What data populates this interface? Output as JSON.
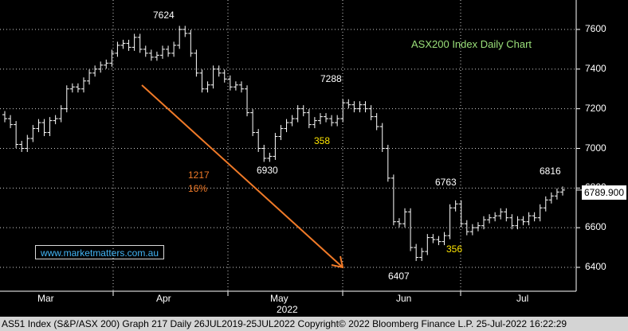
{
  "chart_data": {
    "type": "bar",
    "subtype": "ohlc",
    "title": "ASX200 Index Daily Chart",
    "ylim": [
      6320,
      7700
    ],
    "y_ticks": [
      6400,
      6600,
      6800,
      7000,
      7200,
      7400,
      7600
    ],
    "x_ticks": [
      "Mar",
      "Apr",
      "May",
      "Jun",
      "Jul"
    ],
    "x_year_label": "2022",
    "grid": true,
    "last_price": "6789.900",
    "closes": [
      7150,
      7120,
      7020,
      7000,
      7050,
      7100,
      7130,
      7080,
      7140,
      7150,
      7200,
      7300,
      7310,
      7300,
      7340,
      7380,
      7400,
      7420,
      7430,
      7480,
      7520,
      7530,
      7510,
      7560,
      7500,
      7480,
      7460,
      7470,
      7500,
      7480,
      7520,
      7600,
      7580,
      7480,
      7380,
      7300,
      7320,
      7400,
      7380,
      7350,
      7310,
      7320,
      7300,
      7180,
      7080,
      7000,
      6950,
      6960,
      7060,
      7100,
      7130,
      7150,
      7200,
      7180,
      7120,
      7140,
      7160,
      7150,
      7130,
      7150,
      7230,
      7220,
      7200,
      7220,
      7200,
      7160,
      7110,
      7000,
      6850,
      6630,
      6620,
      6680,
      6500,
      6450,
      6480,
      6550,
      6540,
      6530,
      6560,
      6700,
      6720,
      6620,
      6580,
      6600,
      6610,
      6640,
      6650,
      6660,
      6680,
      6650,
      6610,
      6640,
      6630,
      6660,
      6650,
      6700,
      6740,
      6760,
      6780,
      6790
    ],
    "annotations": [
      {
        "label": "7624",
        "value": 7624
      },
      {
        "label": "7288",
        "value": 7288
      },
      {
        "label": "6930",
        "value": 6930
      },
      {
        "label": "358"
      },
      {
        "label": "6407",
        "value": 6407
      },
      {
        "label": "6763",
        "value": 6763
      },
      {
        "label": "356"
      },
      {
        "label": "6816",
        "value": 6816
      },
      {
        "label": "1217"
      },
      {
        "label": "16%"
      }
    ]
  },
  "labels": {
    "peak_7624": "7624",
    "peak_7288": "7288",
    "low_6930": "6930",
    "bounce_358": "358",
    "low_6407": "6407",
    "peak_6763": "6763",
    "bounce_356": "356",
    "peak_6816": "6816",
    "drop_points": "1217",
    "drop_pct": "16%"
  },
  "watermark": "www.marketmatters.com.au",
  "footer": "AS51 Index (S&P/ASX 200) Graph 217  Daily 26JUL2019-25JUL2022 Copyright© 2022 Bloomberg Finance L.P. 25-Jul-2022 16:22:29",
  "colors": {
    "arrow": "#f07a28",
    "annotation_yellow": "#ffe600",
    "title_green": "#9be07a",
    "watermark_blue": "#43b5f5"
  }
}
